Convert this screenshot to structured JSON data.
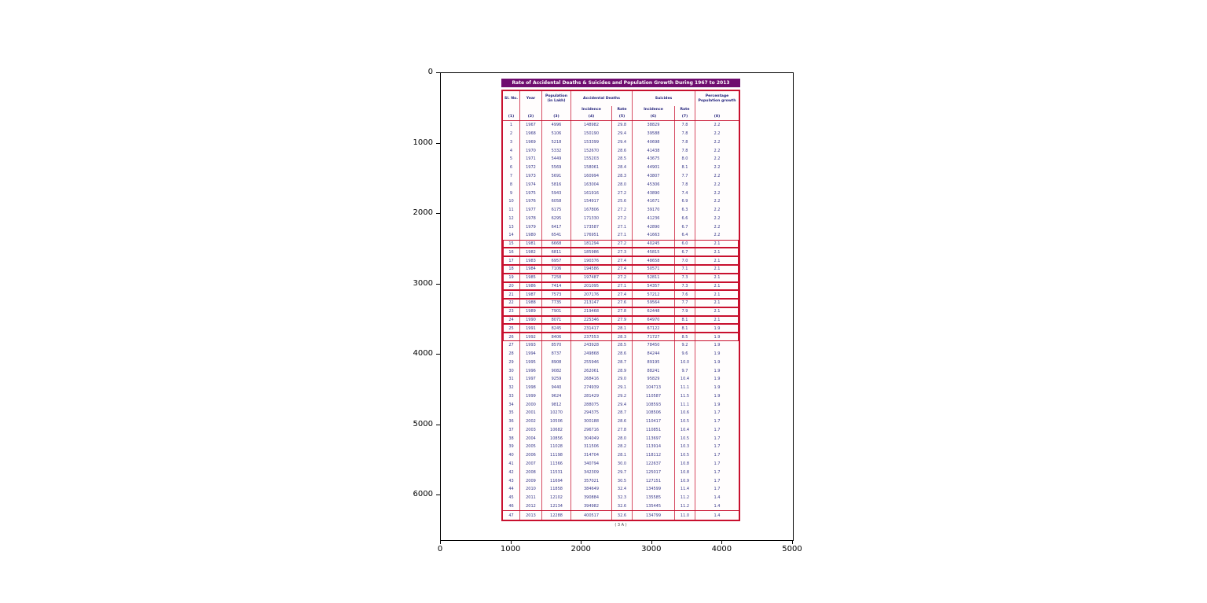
{
  "colors": {
    "title_bg": "#6f0d6f",
    "grid_red": "#c8102e",
    "header_text": "#1c1c78",
    "cell_text": "#38388a"
  },
  "chart_data": {
    "type": "table",
    "title": "Rate of Accidental Deaths & Suicides and Population Growth During 1967 to 2013",
    "caption": "( 3 A )",
    "axes": {
      "x_ticks": [
        "0",
        "1000",
        "2000",
        "3000",
        "4000",
        "5000"
      ],
      "y_ticks": [
        "0",
        "1000",
        "2000",
        "3000",
        "4000",
        "5000",
        "6000"
      ]
    },
    "header": {
      "col1": "Sl. No.",
      "col2": "Year",
      "col3": "Population (in Lakh)",
      "group_ad": "Accidental Deaths",
      "group_su": "Suicides",
      "sub_incidence": "Incidence",
      "sub_rate": "Rate",
      "col8": "Percentage Population growth",
      "col_numbers": [
        "(1)",
        "(2)",
        "(3)",
        "(4)",
        "(5)",
        "(6)",
        "(7)",
        "(8)"
      ]
    },
    "boxed_rows_start": 15,
    "boxed_rows_end": 26,
    "rows": [
      [
        "1",
        "1967",
        "4996",
        "148982",
        "29.8",
        "38829",
        "7.8",
        "2.2"
      ],
      [
        "2",
        "1968",
        "5106",
        "150190",
        "29.4",
        "39588",
        "7.8",
        "2.2"
      ],
      [
        "3",
        "1969",
        "5218",
        "153399",
        "29.4",
        "40698",
        "7.8",
        "2.2"
      ],
      [
        "4",
        "1970",
        "5332",
        "152670",
        "28.6",
        "41438",
        "7.8",
        "2.2"
      ],
      [
        "5",
        "1971",
        "5449",
        "155203",
        "28.5",
        "43675",
        "8.0",
        "2.2"
      ],
      [
        "6",
        "1972",
        "5569",
        "158061",
        "28.4",
        "44901",
        "8.1",
        "2.2"
      ],
      [
        "7",
        "1973",
        "5691",
        "160994",
        "28.3",
        "43807",
        "7.7",
        "2.2"
      ],
      [
        "8",
        "1974",
        "5816",
        "163004",
        "28.0",
        "45306",
        "7.8",
        "2.2"
      ],
      [
        "9",
        "1975",
        "5943",
        "161916",
        "27.2",
        "43890",
        "7.4",
        "2.2"
      ],
      [
        "10",
        "1976",
        "6058",
        "154917",
        "25.6",
        "41671",
        "6.9",
        "2.2"
      ],
      [
        "11",
        "1977",
        "6175",
        "167806",
        "27.2",
        "39170",
        "6.3",
        "2.2"
      ],
      [
        "12",
        "1978",
        "6295",
        "171330",
        "27.2",
        "41236",
        "6.6",
        "2.2"
      ],
      [
        "13",
        "1979",
        "6417",
        "173587",
        "27.1",
        "42890",
        "6.7",
        "2.2"
      ],
      [
        "14",
        "1980",
        "6541",
        "176951",
        "27.1",
        "41663",
        "6.4",
        "2.2"
      ],
      [
        "15",
        "1981",
        "6668",
        "181294",
        "27.2",
        "40245",
        "6.0",
        "2.1"
      ],
      [
        "16",
        "1982",
        "6811",
        "185986",
        "27.3",
        "45815",
        "6.7",
        "2.1"
      ],
      [
        "17",
        "1983",
        "6957",
        "190376",
        "27.4",
        "48658",
        "7.0",
        "2.1"
      ],
      [
        "18",
        "1984",
        "7106",
        "194586",
        "27.4",
        "50571",
        "7.1",
        "2.1"
      ],
      [
        "19",
        "1985",
        "7258",
        "197487",
        "27.2",
        "52811",
        "7.3",
        "2.1"
      ],
      [
        "20",
        "1986",
        "7414",
        "201095",
        "27.1",
        "54357",
        "7.3",
        "2.1"
      ],
      [
        "21",
        "1987",
        "7573",
        "207176",
        "27.4",
        "57212",
        "7.6",
        "2.1"
      ],
      [
        "22",
        "1988",
        "7735",
        "213147",
        "27.6",
        "59564",
        "7.7",
        "2.1"
      ],
      [
        "23",
        "1989",
        "7901",
        "219468",
        "27.8",
        "62448",
        "7.9",
        "2.1"
      ],
      [
        "24",
        "1990",
        "8071",
        "225346",
        "27.9",
        "64970",
        "8.1",
        "2.1"
      ],
      [
        "25",
        "1991",
        "8245",
        "231417",
        "28.1",
        "67122",
        "8.1",
        "1.9"
      ],
      [
        "26",
        "1992",
        "8406",
        "237553",
        "28.3",
        "71727",
        "8.5",
        "1.9"
      ],
      [
        "27",
        "1993",
        "8570",
        "243928",
        "28.5",
        "78450",
        "9.2",
        "1.9"
      ],
      [
        "28",
        "1994",
        "8737",
        "249868",
        "28.6",
        "84244",
        "9.6",
        "1.9"
      ],
      [
        "29",
        "1995",
        "8908",
        "255946",
        "28.7",
        "89195",
        "10.0",
        "1.9"
      ],
      [
        "30",
        "1996",
        "9082",
        "262061",
        "28.9",
        "88241",
        "9.7",
        "1.9"
      ],
      [
        "31",
        "1997",
        "9259",
        "268416",
        "29.0",
        "95829",
        "10.4",
        "1.9"
      ],
      [
        "32",
        "1998",
        "9440",
        "274939",
        "29.1",
        "104713",
        "11.1",
        "1.9"
      ],
      [
        "33",
        "1999",
        "9624",
        "281429",
        "29.2",
        "110587",
        "11.5",
        "1.9"
      ],
      [
        "34",
        "2000",
        "9812",
        "288075",
        "29.4",
        "108593",
        "11.1",
        "1.9"
      ],
      [
        "35",
        "2001",
        "10270",
        "294375",
        "28.7",
        "108506",
        "10.6",
        "1.7"
      ],
      [
        "36",
        "2002",
        "10506",
        "300188",
        "28.6",
        "110417",
        "10.5",
        "1.7"
      ],
      [
        "37",
        "2003",
        "10682",
        "296716",
        "27.8",
        "110851",
        "10.4",
        "1.7"
      ],
      [
        "38",
        "2004",
        "10856",
        "304049",
        "28.0",
        "113697",
        "10.5",
        "1.7"
      ],
      [
        "39",
        "2005",
        "11028",
        "311506",
        "28.2",
        "113914",
        "10.3",
        "1.7"
      ],
      [
        "40",
        "2006",
        "11198",
        "314704",
        "28.1",
        "118112",
        "10.5",
        "1.7"
      ],
      [
        "41",
        "2007",
        "11366",
        "340794",
        "30.0",
        "122637",
        "10.8",
        "1.7"
      ],
      [
        "42",
        "2008",
        "11531",
        "342309",
        "29.7",
        "125017",
        "10.8",
        "1.7"
      ],
      [
        "43",
        "2009",
        "11694",
        "357021",
        "30.5",
        "127151",
        "10.9",
        "1.7"
      ],
      [
        "44",
        "2010",
        "11858",
        "384649",
        "32.4",
        "134599",
        "11.4",
        "1.7"
      ],
      [
        "45",
        "2011",
        "12102",
        "390884",
        "32.3",
        "135585",
        "11.2",
        "1.4"
      ],
      [
        "46",
        "2012",
        "12134",
        "394982",
        "32.6",
        "135445",
        "11.2",
        "1.4"
      ],
      [
        "47",
        "2013",
        "12288",
        "400517",
        "32.6",
        "134799",
        "11.0",
        "1.4"
      ]
    ]
  }
}
